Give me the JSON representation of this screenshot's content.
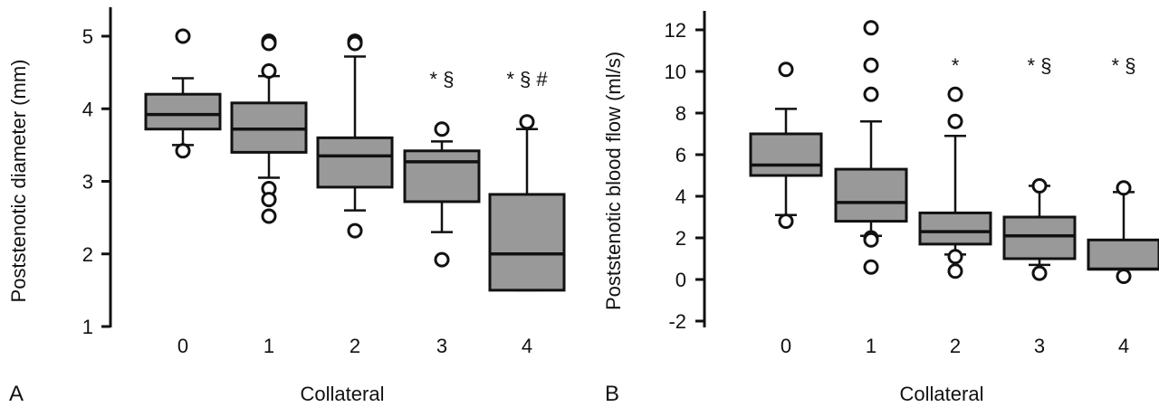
{
  "chart_data": [
    {
      "type": "box",
      "panel_label": "A",
      "xlabel": "Collateral",
      "ylabel": "Poststenotic diameter (mm)",
      "ylim": [
        1,
        5
      ],
      "yticks": [
        "1",
        "2",
        "3",
        "4",
        "5"
      ],
      "categories": [
        "0",
        "1",
        "2",
        "3",
        "4"
      ],
      "boxes": [
        {
          "category": "0",
          "whisker_low": 3.5,
          "q1": 3.72,
          "median": 3.92,
          "q3": 4.2,
          "whisker_high": 4.42,
          "outliers": [
            5.0,
            3.42
          ],
          "annotation": ""
        },
        {
          "category": "1",
          "whisker_low": 3.05,
          "q1": 3.4,
          "median": 3.72,
          "q3": 4.08,
          "whisker_high": 4.45,
          "outliers": [
            4.93,
            4.9,
            4.52,
            2.9,
            2.75,
            2.52
          ],
          "annotation": ""
        },
        {
          "category": "2",
          "whisker_low": 2.6,
          "q1": 2.92,
          "median": 3.35,
          "q3": 3.6,
          "whisker_high": 4.72,
          "outliers": [
            4.93,
            4.9,
            2.32
          ],
          "annotation": ""
        },
        {
          "category": "3",
          "whisker_low": 2.3,
          "q1": 2.72,
          "median": 3.27,
          "q3": 3.42,
          "whisker_high": 3.55,
          "outliers": [
            3.72,
            1.92
          ],
          "annotation": "* §"
        },
        {
          "category": "4",
          "whisker_low": 1.5,
          "q1": 1.5,
          "median": 2.0,
          "q3": 2.82,
          "whisker_high": 3.72,
          "outliers": [
            3.82
          ],
          "annotation": "* § #"
        }
      ]
    },
    {
      "type": "box",
      "panel_label": "B",
      "xlabel": "Collateral",
      "ylabel": "Poststenotic blood flow (ml/s)",
      "ylim": [
        -2,
        12
      ],
      "yticks": [
        "-2",
        "0",
        "2",
        "4",
        "6",
        "8",
        "10",
        "12"
      ],
      "categories": [
        "0",
        "1",
        "2",
        "3",
        "4"
      ],
      "boxes": [
        {
          "category": "0",
          "whisker_low": 3.1,
          "q1": 5.0,
          "median": 5.5,
          "q3": 7.0,
          "whisker_high": 8.2,
          "outliers": [
            10.1,
            2.8
          ],
          "annotation": ""
        },
        {
          "category": "1",
          "whisker_low": 2.1,
          "q1": 2.8,
          "median": 3.7,
          "q3": 5.3,
          "whisker_high": 7.6,
          "outliers": [
            12.1,
            10.3,
            8.9,
            2.0,
            1.9,
            0.6
          ],
          "annotation": ""
        },
        {
          "category": "2",
          "whisker_low": 1.2,
          "q1": 1.7,
          "median": 2.3,
          "q3": 3.2,
          "whisker_high": 6.9,
          "outliers": [
            8.9,
            7.6,
            1.1,
            0.4
          ],
          "annotation": "*"
        },
        {
          "category": "3",
          "whisker_low": 0.7,
          "q1": 1.0,
          "median": 2.1,
          "q3": 3.0,
          "whisker_high": 4.5,
          "outliers": [
            4.5,
            0.3
          ],
          "annotation": "* §"
        },
        {
          "category": "4",
          "whisker_low": 0.5,
          "q1": 0.5,
          "median": 0.5,
          "q3": 1.9,
          "whisker_high": 4.2,
          "outliers": [
            4.4,
            0.15
          ],
          "annotation": "* §"
        }
      ]
    }
  ],
  "colors": {
    "box_fill": "#999999",
    "stroke": "#111111"
  }
}
